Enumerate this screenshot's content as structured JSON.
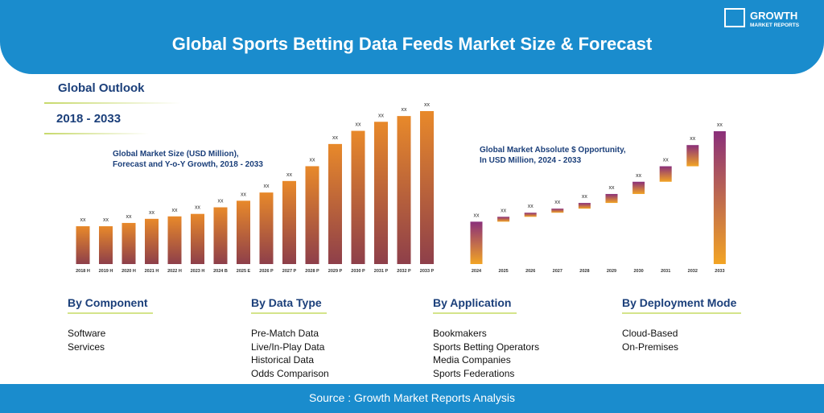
{
  "header": {
    "title": "Global Sports Betting Data Feeds Market Size & Forecast",
    "logo": [
      "GROWTH",
      "MARKET REPORTS"
    ]
  },
  "outlook": {
    "label": "Global Outlook",
    "period": "2018 - 2033"
  },
  "chart_data": [
    {
      "type": "bar",
      "title": [
        "Global Market Size (USD Million),",
        "Forecast and Y-o-Y Growth, 2018 - 2033"
      ],
      "categories": [
        "2018 H",
        "2019 H",
        "2020 H",
        "2021 H",
        "2022 H",
        "2023 H",
        "2024 B",
        "2025 E",
        "2026 P",
        "2027 P",
        "2028 P",
        "2029 P",
        "2030 P",
        "2031 P",
        "2032 P",
        "2033 P"
      ],
      "values": [
        46,
        46,
        50,
        55,
        58,
        61,
        69,
        77,
        87,
        101,
        119,
        146,
        162,
        173,
        180,
        186
      ],
      "value_labels": [
        "xx",
        "xx",
        "xx",
        "xx",
        "xx",
        "xx",
        "xx",
        "xx",
        "xx",
        "xx",
        "xx",
        "xx",
        "xx",
        "xx",
        "xx",
        "xx"
      ],
      "colors": [
        "#e8892a",
        "#8e3f4a"
      ]
    },
    {
      "type": "waterfall",
      "title": [
        "Global Market Absolute $ Opportunity,",
        "In USD Million, 2024 - 2033"
      ],
      "categories": [
        "2024",
        "2025",
        "2026",
        "2027",
        "2028",
        "2029",
        "2030",
        "2031",
        "2032",
        "2033"
      ],
      "values": [
        52,
        6,
        5,
        5,
        7,
        11,
        15,
        19,
        26,
        163
      ],
      "value_labels": [
        "xx",
        "xx",
        "xx",
        "xx",
        "xx",
        "xx",
        "xx",
        "xx",
        "xx",
        "xx"
      ],
      "colors": [
        "#8a2f7a",
        "#f2a424"
      ]
    }
  ],
  "segments": [
    {
      "title": "By Component",
      "items": [
        "Software",
        "Services"
      ]
    },
    {
      "title": "By Data Type",
      "items": [
        "Pre-Match Data",
        "Live/In-Play Data",
        "Historical Data",
        "Odds Comparison"
      ]
    },
    {
      "title": "By Application",
      "items": [
        "Bookmakers",
        "Sports Betting Operators",
        "Media Companies",
        "Sports Federations"
      ]
    },
    {
      "title": "By Deployment Mode",
      "items": [
        "Cloud-Based",
        "On-Premises"
      ]
    }
  ],
  "source": "Source : Growth Market Reports Analysis"
}
